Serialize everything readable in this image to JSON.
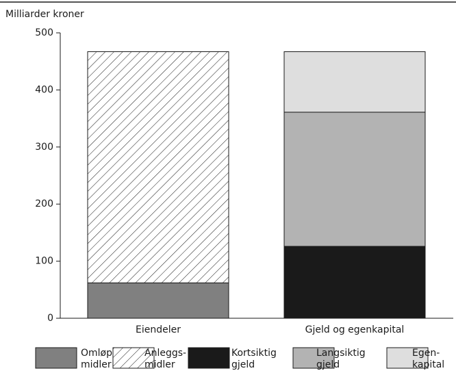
{
  "chart_data": {
    "type": "stacked_bar",
    "ylabel": "Milliarder kroner",
    "categories": [
      "Eiendeler",
      "Gjeld og egenkapital"
    ],
    "series": [
      {
        "name": "Omløps-\nmidler",
        "color": "#808080",
        "values": [
          62,
          null
        ]
      },
      {
        "name": "Anleggs-\nmidler",
        "color": "hatch",
        "values": [
          405,
          null
        ]
      },
      {
        "name": "Kortsiktig\ngjeld",
        "color": "#1a1a1a",
        "values": [
          null,
          126
        ]
      },
      {
        "name": "Langsiktig\ngjeld",
        "color": "#b3b3b3",
        "values": [
          null,
          235
        ]
      },
      {
        "name": "Egen-\nkapital",
        "color": "#dedede",
        "values": [
          null,
          106
        ]
      }
    ],
    "ylim": [
      0,
      500
    ],
    "yticks": [
      0,
      100,
      200,
      300,
      400,
      500
    ]
  }
}
